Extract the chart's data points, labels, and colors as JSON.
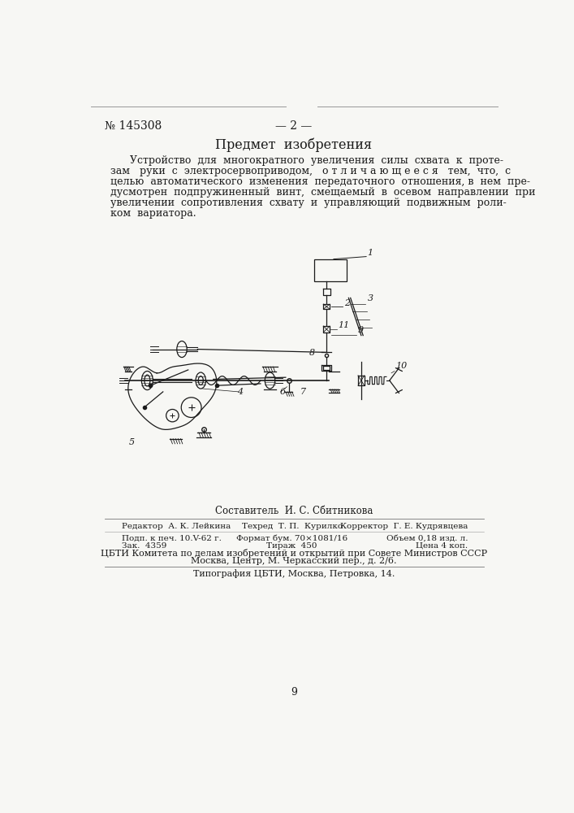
{
  "page_number": "№ 145308",
  "page_num_center": "— 2 —",
  "section_title": "Предмет  изобретения",
  "paragraph_lines": [
    "      Устройство  для  многократного  увеличения  силы  схвата  к  проте-",
    "зам   руки  с  электросервоприводом,   о т л и ч а ю щ е е с я   тем,  что,  с",
    "целью  автоматического  изменения  передаточного  отношения, в  нем  пре-",
    "дусмотрен  подпружиненный  винт,  смещаемый  в  осевом  направлении  при",
    "увеличении  сопротивления  схвату  и  управляющий  подвижным  роли-",
    "ком  вариатора."
  ],
  "compiler_label": "Составитель  И. С. Сбитникова",
  "editor_label": "Редактор  А. К. Лейкина",
  "techred_label": "Техред  Т. П.  Курилко",
  "corrector_label": "Корректор  Г. Е. Кудрявцева",
  "sign_label": "Подп. к печ. 10.V-62 г.",
  "format_label": "Формат бум. 70×1081/16",
  "volume_label": "Объем 0,18 изд. л.",
  "order_label": "Зак.  4359",
  "tirazh_label": "Тираж  450",
  "price_label": "Цена 4 коп.",
  "org1": "ЦБТИ Комитета по делам изобретений и открытий при Совете Министров СССР",
  "org2": "Москва, Центр, М. Черкасский пер., д. 2/6.",
  "print_info": "Типография ЦБТИ, Москва, Петровка, 14.",
  "page_bottom_num": "9",
  "bg_color": "#f7f7f4",
  "text_color": "#1a1a1a"
}
